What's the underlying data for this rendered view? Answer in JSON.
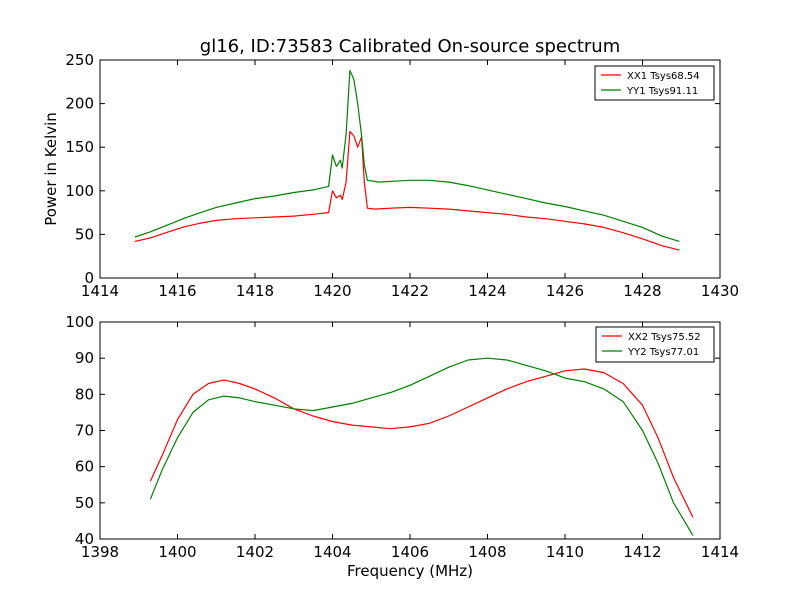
{
  "figure": {
    "title": "gl16, ID:73583 Calibrated On-source spectrum",
    "xlabel": "Frequency (MHz)",
    "ylabel": "Power in Kelvin"
  },
  "colors": {
    "red": "#ff0000",
    "green": "#007f00"
  },
  "chart_data": [
    {
      "type": "line",
      "xlim": [
        1414,
        1430
      ],
      "ylim": [
        0,
        250
      ],
      "xticks": [
        1414,
        1416,
        1418,
        1420,
        1422,
        1424,
        1426,
        1428,
        1430
      ],
      "yticks": [
        0,
        50,
        100,
        150,
        200,
        250
      ],
      "legend": "top-right",
      "series": [
        {
          "name": "XX1 Tsys68.54",
          "color": "#ff0000",
          "points": [
            [
              1414.9,
              42
            ],
            [
              1415.3,
              46
            ],
            [
              1415.7,
              52
            ],
            [
              1416.2,
              59
            ],
            [
              1416.6,
              63
            ],
            [
              1417,
              66
            ],
            [
              1417.5,
              68
            ],
            [
              1418,
              69
            ],
            [
              1418.5,
              70
            ],
            [
              1419,
              71
            ],
            [
              1419.5,
              73
            ],
            [
              1419.9,
              75
            ],
            [
              1420.0,
              100
            ],
            [
              1420.1,
              92
            ],
            [
              1420.2,
              95
            ],
            [
              1420.25,
              90
            ],
            [
              1420.35,
              110
            ],
            [
              1420.45,
              168
            ],
            [
              1420.55,
              163
            ],
            [
              1420.65,
              150
            ],
            [
              1420.75,
              162
            ],
            [
              1420.82,
              110
            ],
            [
              1420.9,
              80
            ],
            [
              1421.1,
              79
            ],
            [
              1421.5,
              80
            ],
            [
              1422,
              81
            ],
            [
              1422.5,
              80
            ],
            [
              1423,
              79
            ],
            [
              1423.5,
              77
            ],
            [
              1424,
              75
            ],
            [
              1424.5,
              73
            ],
            [
              1425,
              70
            ],
            [
              1425.5,
              68
            ],
            [
              1426,
              65
            ],
            [
              1426.5,
              62
            ],
            [
              1427,
              58
            ],
            [
              1427.5,
              52
            ],
            [
              1428,
              45
            ],
            [
              1428.5,
              37
            ],
            [
              1428.95,
              32
            ]
          ]
        },
        {
          "name": "YY1 Tsys91.11",
          "color": "#007f00",
          "points": [
            [
              1414.9,
              47
            ],
            [
              1415.3,
              53
            ],
            [
              1415.7,
              60
            ],
            [
              1416.2,
              69
            ],
            [
              1416.6,
              75
            ],
            [
              1417,
              81
            ],
            [
              1417.5,
              86
            ],
            [
              1418,
              91
            ],
            [
              1418.5,
              94
            ],
            [
              1419,
              98
            ],
            [
              1419.5,
              101
            ],
            [
              1419.9,
              105
            ],
            [
              1420.0,
              141
            ],
            [
              1420.1,
              128
            ],
            [
              1420.2,
              135
            ],
            [
              1420.25,
              126
            ],
            [
              1420.35,
              165
            ],
            [
              1420.45,
              238
            ],
            [
              1420.55,
              228
            ],
            [
              1420.65,
              200
            ],
            [
              1420.75,
              163
            ],
            [
              1420.82,
              130
            ],
            [
              1420.9,
              112
            ],
            [
              1421.2,
              110
            ],
            [
              1421.6,
              111
            ],
            [
              1422,
              112
            ],
            [
              1422.5,
              112
            ],
            [
              1423,
              110
            ],
            [
              1423.5,
              106
            ],
            [
              1424,
              101
            ],
            [
              1424.5,
              96
            ],
            [
              1425,
              91
            ],
            [
              1425.5,
              86
            ],
            [
              1426,
              82
            ],
            [
              1426.5,
              77
            ],
            [
              1427,
              72
            ],
            [
              1427.5,
              65
            ],
            [
              1428,
              58
            ],
            [
              1428.5,
              48
            ],
            [
              1428.95,
              42
            ]
          ]
        }
      ]
    },
    {
      "type": "line",
      "xlim": [
        1398,
        1414
      ],
      "ylim": [
        40,
        100
      ],
      "xticks": [
        1398,
        1400,
        1402,
        1404,
        1406,
        1408,
        1410,
        1412,
        1414
      ],
      "yticks": [
        40,
        50,
        60,
        70,
        80,
        90,
        100
      ],
      "legend": "top-right",
      "series": [
        {
          "name": "XX2 Tsys75.52",
          "color": "#ff0000",
          "points": [
            [
              1399.3,
              56
            ],
            [
              1399.6,
              63
            ],
            [
              1400,
              73
            ],
            [
              1400.4,
              80
            ],
            [
              1400.8,
              83
            ],
            [
              1401.2,
              84
            ],
            [
              1401.6,
              83
            ],
            [
              1402,
              81.5
            ],
            [
              1402.5,
              79
            ],
            [
              1403,
              76
            ],
            [
              1403.5,
              74
            ],
            [
              1404,
              72.5
            ],
            [
              1404.5,
              71.5
            ],
            [
              1405,
              71
            ],
            [
              1405.5,
              70.5
            ],
            [
              1406,
              71
            ],
            [
              1406.5,
              72
            ],
            [
              1407,
              74
            ],
            [
              1407.5,
              76.5
            ],
            [
              1408,
              79
            ],
            [
              1408.5,
              81.5
            ],
            [
              1409,
              83.5
            ],
            [
              1409.5,
              85
            ],
            [
              1410,
              86.5
            ],
            [
              1410.5,
              87
            ],
            [
              1411,
              86
            ],
            [
              1411.5,
              83
            ],
            [
              1412,
              77
            ],
            [
              1412.4,
              68
            ],
            [
              1412.8,
              57
            ],
            [
              1413.3,
              46
            ]
          ]
        },
        {
          "name": "YY2 Tsys77.01",
          "color": "#007f00",
          "points": [
            [
              1399.3,
              51
            ],
            [
              1399.6,
              59
            ],
            [
              1400,
              68
            ],
            [
              1400.4,
              75
            ],
            [
              1400.8,
              78.5
            ],
            [
              1401.2,
              79.5
            ],
            [
              1401.6,
              79
            ],
            [
              1402,
              78
            ],
            [
              1402.5,
              77
            ],
            [
              1403,
              76
            ],
            [
              1403.5,
              75.5
            ],
            [
              1404,
              76.5
            ],
            [
              1404.5,
              77.5
            ],
            [
              1405,
              79
            ],
            [
              1405.5,
              80.5
            ],
            [
              1406,
              82.5
            ],
            [
              1406.5,
              85
            ],
            [
              1407,
              87.5
            ],
            [
              1407.5,
              89.5
            ],
            [
              1408,
              90
            ],
            [
              1408.5,
              89.5
            ],
            [
              1409,
              88
            ],
            [
              1409.5,
              86.5
            ],
            [
              1410,
              84.5
            ],
            [
              1410.5,
              83.5
            ],
            [
              1411,
              81.5
            ],
            [
              1411.5,
              78
            ],
            [
              1412,
              70
            ],
            [
              1412.4,
              61
            ],
            [
              1412.8,
              50
            ],
            [
              1413.3,
              41
            ]
          ]
        }
      ]
    }
  ]
}
